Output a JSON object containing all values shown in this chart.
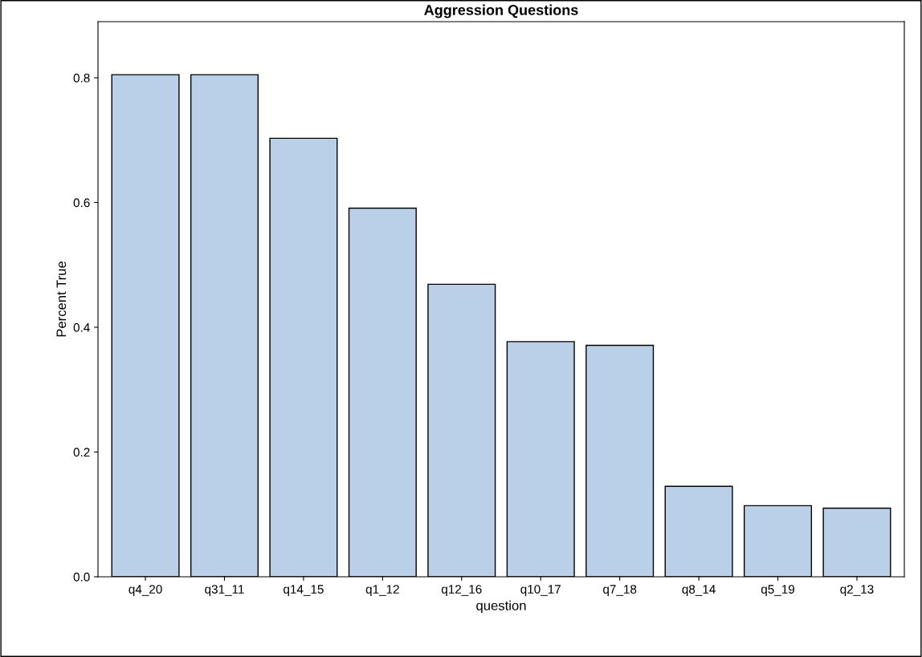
{
  "chart_data": {
    "type": "bar",
    "title": "Aggression Questions",
    "xlabel": "question",
    "ylabel": "Percent True",
    "categories": [
      "q4_20",
      "q31_11",
      "q14_15",
      "q1_12",
      "q12_16",
      "q10_17",
      "q7_18",
      "q8_14",
      "q5_19",
      "q2_13"
    ],
    "values": [
      0.805,
      0.805,
      0.703,
      0.591,
      0.469,
      0.377,
      0.371,
      0.145,
      0.114,
      0.11
    ],
    "color": "#b9d0e8",
    "ylim": [
      0,
      0.89
    ],
    "yticks": [
      {
        "value": 0,
        "label": "0.0"
      },
      0.2,
      0.4,
      0.6,
      0.8
    ],
    "grid": false
  }
}
